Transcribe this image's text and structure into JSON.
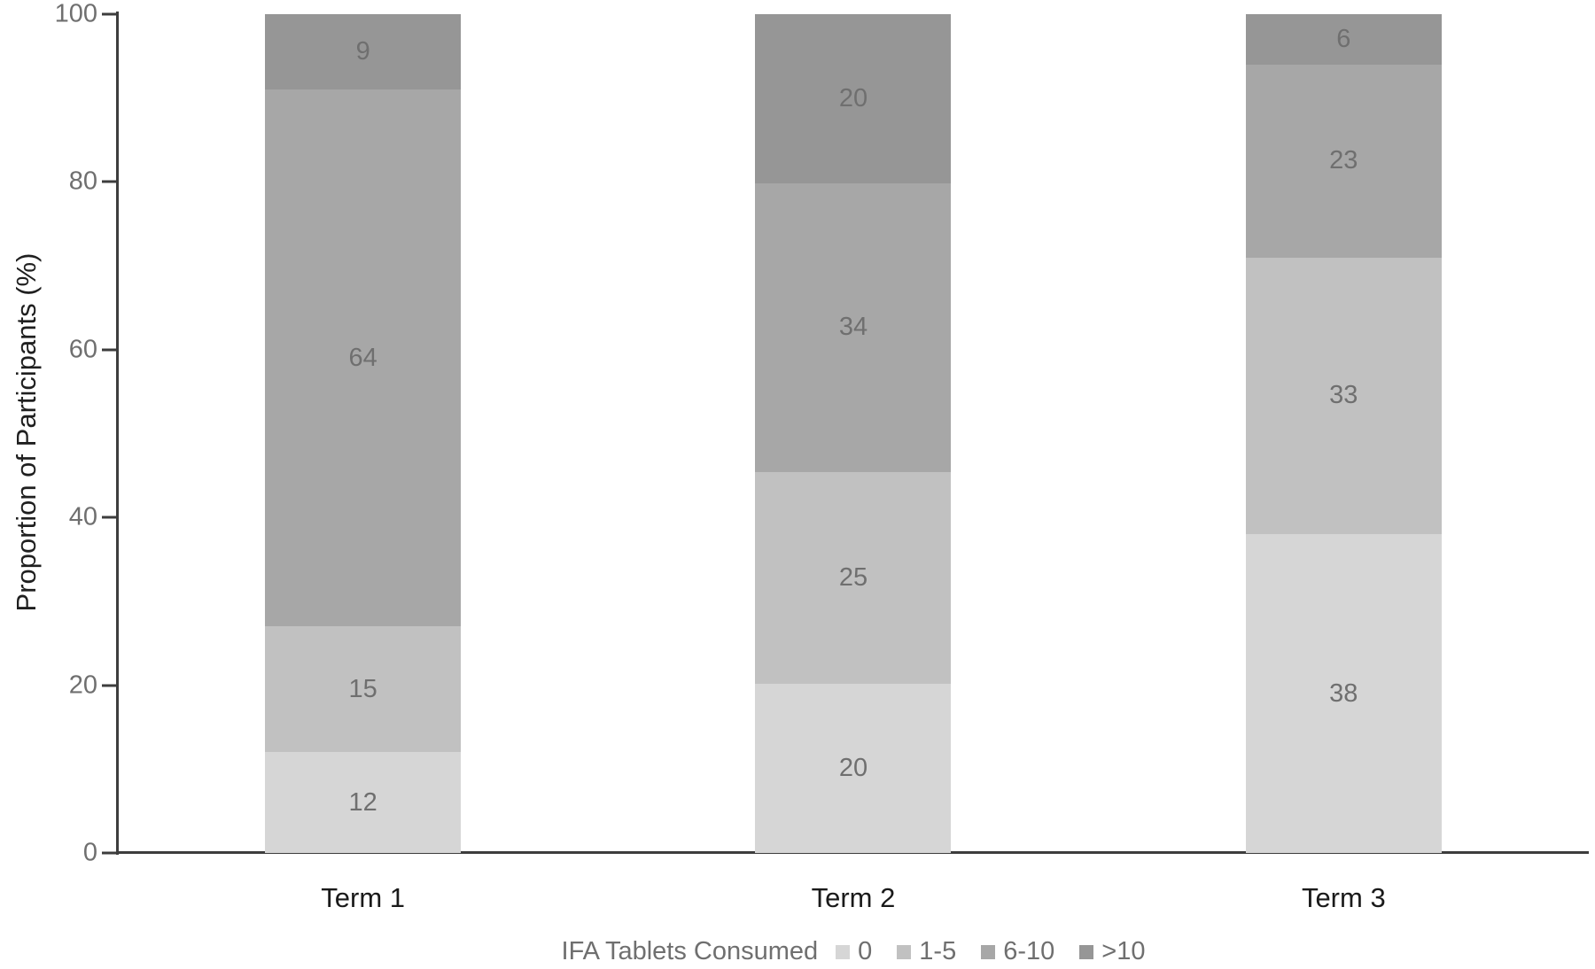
{
  "chart_data": {
    "type": "bar",
    "variant": "100%-stacked-column",
    "categories": [
      "Term 1",
      "Term 2",
      "Term 3"
    ],
    "series": [
      {
        "name": "0",
        "color": "#d6d6d6",
        "values": [
          12,
          20,
          38
        ]
      },
      {
        "name": "1-5",
        "color": "#c1c1c1",
        "values": [
          15,
          25,
          33
        ]
      },
      {
        "name": "6-10",
        "color": "#a7a7a7",
        "values": [
          64,
          34,
          23
        ]
      },
      {
        "name": ">10",
        "color": "#969696",
        "values": [
          9,
          20,
          6
        ]
      }
    ],
    "title": "",
    "xlabel": "",
    "ylabel": "Proportion of Participants (%)",
    "ylim": [
      0,
      100
    ],
    "yticks": [
      0,
      20,
      40,
      60,
      80,
      100
    ],
    "grid": "off",
    "legend_title": "IFA Tablets Consumed",
    "legend_position": "bottom",
    "data_label_color": "#6f6f6f",
    "axis_line_color": "#3d3d3d",
    "tick_label_color": "#6f6f6f",
    "category_label_color": "#1a1a1a"
  }
}
